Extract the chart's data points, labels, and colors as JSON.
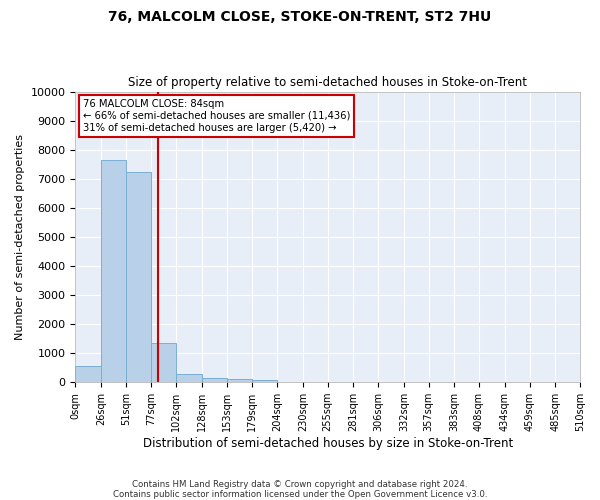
{
  "title": "76, MALCOLM CLOSE, STOKE-ON-TRENT, ST2 7HU",
  "subtitle": "Size of property relative to semi-detached houses in Stoke-on-Trent",
  "xlabel": "Distribution of semi-detached houses by size in Stoke-on-Trent",
  "ylabel": "Number of semi-detached properties",
  "footer_line1": "Contains HM Land Registry data © Crown copyright and database right 2024.",
  "footer_line2": "Contains public sector information licensed under the Open Government Licence v3.0.",
  "bin_edges": [
    0,
    26,
    51,
    77,
    102,
    128,
    153,
    179,
    204,
    230,
    255,
    281,
    306,
    332,
    357,
    383,
    408,
    434,
    459,
    485,
    510
  ],
  "bin_labels": [
    "0sqm",
    "26sqm",
    "51sqm",
    "77sqm",
    "102sqm",
    "128sqm",
    "153sqm",
    "179sqm",
    "204sqm",
    "230sqm",
    "255sqm",
    "281sqm",
    "306sqm",
    "332sqm",
    "357sqm",
    "383sqm",
    "408sqm",
    "434sqm",
    "459sqm",
    "485sqm",
    "510sqm"
  ],
  "bar_values": [
    550,
    7650,
    7250,
    1350,
    300,
    150,
    100,
    75,
    0,
    0,
    0,
    0,
    0,
    0,
    0,
    0,
    0,
    0,
    0,
    0
  ],
  "bar_color": "#b8d0e8",
  "bar_edge_color": "#7aafd4",
  "vline_x": 84,
  "vline_color": "#cc0000",
  "ann_line1": "76 MALCOLM CLOSE: 84sqm",
  "ann_line2": "← 66% of semi-detached houses are smaller (11,436)",
  "ann_line3": "31% of semi-detached houses are larger (5,420) →",
  "ann_box_edge": "#cc0000",
  "ylim": [
    0,
    10000
  ],
  "yticks": [
    0,
    1000,
    2000,
    3000,
    4000,
    5000,
    6000,
    7000,
    8000,
    9000,
    10000
  ],
  "bg_color": "#e8eef8",
  "fig_bg": "#ffffff"
}
